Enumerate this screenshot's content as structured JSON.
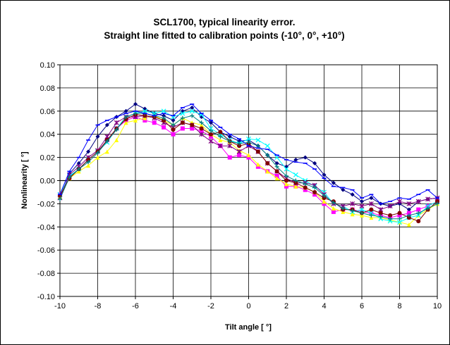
{
  "chart_data": {
    "type": "line",
    "title": "SCL1700, typical linearity error.",
    "subtitle": "Straight line fitted to calibration points (-10°, 0°, +10°)",
    "xlabel": "Tilt angle [ °]",
    "ylabel": "Nonlinearity [ °]",
    "xlim": [
      -10,
      10
    ],
    "ylim": [
      -0.1,
      0.1
    ],
    "x_ticks": [
      "-10",
      "-8",
      "-6",
      "-4",
      "-2",
      "0",
      "2",
      "4",
      "6",
      "8",
      "10"
    ],
    "y_ticks": [
      "0.10",
      "0.08",
      "0.06",
      "0.04",
      "0.02",
      "0.00",
      "-0.02",
      "-0.04",
      "-0.06",
      "-0.08",
      "-0.10"
    ],
    "grid": true,
    "legend": "none",
    "x": [
      -10,
      -9.5,
      -9,
      -8.5,
      -8,
      -7.5,
      -7,
      -6.5,
      -6,
      -5.5,
      -5,
      -4.5,
      -4,
      -3.5,
      -3,
      -2.5,
      -2,
      -1.5,
      -1,
      -0.5,
      0,
      0.5,
      1,
      1.5,
      2,
      2.5,
      3,
      3.5,
      4,
      4.5,
      5,
      5.5,
      6,
      6.5,
      7,
      7.5,
      8,
      8.5,
      9,
      9.5,
      10
    ],
    "series": [
      {
        "color": "#000080",
        "marker": "diamond",
        "values": [
          -0.015,
          0.006,
          0.015,
          0.025,
          0.038,
          0.048,
          0.055,
          0.06,
          0.066,
          0.062,
          0.058,
          0.056,
          0.052,
          0.06,
          0.063,
          0.055,
          0.05,
          0.042,
          0.038,
          0.034,
          0.035,
          0.03,
          0.022,
          0.015,
          0.012,
          0.018,
          0.02,
          0.015,
          0.005,
          -0.002,
          -0.008,
          -0.012,
          -0.018,
          -0.015,
          -0.02,
          -0.022,
          -0.02,
          -0.025,
          -0.018,
          -0.016,
          -0.015
        ]
      },
      {
        "color": "#ff00ff",
        "marker": "square",
        "values": [
          -0.012,
          0.003,
          0.01,
          0.018,
          0.025,
          0.035,
          0.045,
          0.052,
          0.055,
          0.052,
          0.05,
          0.046,
          0.04,
          0.045,
          0.045,
          0.043,
          0.038,
          0.03,
          0.02,
          0.022,
          0.02,
          0.012,
          0.008,
          0.004,
          -0.005,
          -0.005,
          -0.008,
          -0.012,
          -0.02,
          -0.027,
          -0.025,
          -0.025,
          -0.027,
          -0.028,
          -0.03,
          -0.032,
          -0.03,
          -0.028,
          -0.025,
          -0.022,
          -0.018
        ]
      },
      {
        "color": "#ffff00",
        "marker": "triangle",
        "values": [
          -0.014,
          0.002,
          0.008,
          0.013,
          0.02,
          0.025,
          0.035,
          0.05,
          0.052,
          0.054,
          0.056,
          0.052,
          0.048,
          0.054,
          0.05,
          0.048,
          0.04,
          0.035,
          0.033,
          0.026,
          0.022,
          0.014,
          0.008,
          0.002,
          -0.003,
          -0.005,
          -0.006,
          -0.01,
          -0.018,
          -0.024,
          -0.027,
          -0.029,
          -0.03,
          -0.032,
          -0.032,
          -0.034,
          -0.036,
          -0.038,
          -0.03,
          -0.025,
          -0.02
        ]
      },
      {
        "color": "#00ffff",
        "marker": "x",
        "values": [
          -0.012,
          0.004,
          0.01,
          0.018,
          0.025,
          0.033,
          0.045,
          0.055,
          0.058,
          0.06,
          0.058,
          0.06,
          0.055,
          0.058,
          0.06,
          0.057,
          0.045,
          0.04,
          0.035,
          0.032,
          0.036,
          0.035,
          0.03,
          0.02,
          0.01,
          0.005,
          0.0,
          -0.005,
          -0.01,
          -0.02,
          -0.022,
          -0.027,
          -0.025,
          -0.028,
          -0.033,
          -0.035,
          -0.036,
          -0.032,
          -0.03,
          -0.022,
          -0.018
        ]
      },
      {
        "color": "#800080",
        "marker": "star",
        "values": [
          -0.015,
          0.005,
          0.012,
          0.02,
          0.026,
          0.038,
          0.05,
          0.055,
          0.055,
          0.056,
          0.054,
          0.05,
          0.046,
          0.05,
          0.048,
          0.04,
          0.034,
          0.03,
          0.03,
          0.025,
          0.03,
          0.025,
          0.015,
          0.008,
          0.002,
          -0.002,
          -0.002,
          -0.004,
          -0.012,
          -0.02,
          -0.022,
          -0.02,
          -0.022,
          -0.02,
          -0.025,
          -0.022,
          -0.018,
          -0.02,
          -0.018,
          -0.016,
          -0.015
        ]
      },
      {
        "color": "#800000",
        "marker": "circle",
        "values": [
          -0.013,
          0.002,
          0.01,
          0.018,
          0.025,
          0.035,
          0.045,
          0.053,
          0.057,
          0.056,
          0.055,
          0.052,
          0.044,
          0.05,
          0.048,
          0.045,
          0.04,
          0.042,
          0.034,
          0.03,
          0.032,
          0.025,
          0.015,
          0.008,
          0.0,
          -0.002,
          -0.006,
          -0.01,
          -0.015,
          -0.018,
          -0.025,
          -0.025,
          -0.028,
          -0.025,
          -0.028,
          -0.03,
          -0.028,
          -0.032,
          -0.035,
          -0.025,
          -0.018
        ]
      },
      {
        "color": "#008080",
        "marker": "plus",
        "values": [
          -0.016,
          0.003,
          0.01,
          0.016,
          0.024,
          0.034,
          0.044,
          0.055,
          0.058,
          0.058,
          0.056,
          0.054,
          0.048,
          0.054,
          0.056,
          0.05,
          0.043,
          0.038,
          0.034,
          0.032,
          0.033,
          0.03,
          0.022,
          0.012,
          0.004,
          0.0,
          -0.003,
          -0.006,
          -0.013,
          -0.019,
          -0.024,
          -0.026,
          -0.028,
          -0.03,
          -0.031,
          -0.033,
          -0.033,
          -0.03,
          -0.028,
          -0.024,
          -0.02
        ]
      },
      {
        "color": "#0000ff",
        "marker": "dash",
        "values": [
          -0.012,
          0.008,
          0.02,
          0.035,
          0.048,
          0.052,
          0.055,
          0.058,
          0.06,
          0.058,
          0.056,
          0.058,
          0.056,
          0.063,
          0.066,
          0.058,
          0.052,
          0.046,
          0.04,
          0.036,
          0.03,
          0.028,
          0.027,
          0.022,
          0.018,
          0.016,
          0.015,
          0.01,
          0.002,
          -0.005,
          -0.006,
          -0.008,
          -0.015,
          -0.012,
          -0.02,
          -0.018,
          -0.015,
          -0.016,
          -0.012,
          -0.008,
          -0.015
        ]
      }
    ]
  }
}
